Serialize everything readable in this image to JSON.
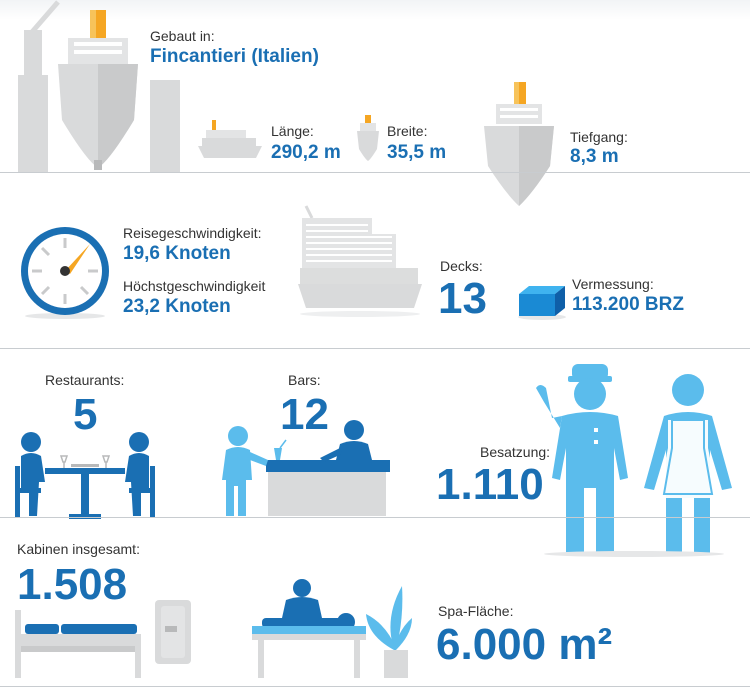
{
  "built": {
    "label": "Gebaut in:",
    "value": "Fincantieri (Italien)"
  },
  "length": {
    "label": "Länge:",
    "value": "290,2 m"
  },
  "width": {
    "label": "Breite:",
    "value": "35,5 m"
  },
  "draft": {
    "label": "Tiefgang:",
    "value": "8,3 m"
  },
  "cruise_speed": {
    "label": "Reisegeschwindigkeit:",
    "value": "19,6 Knoten"
  },
  "max_speed": {
    "label": "Höchstgeschwindigkeit",
    "value": "23,2 Knoten"
  },
  "decks": {
    "label": "Decks:",
    "value": "13"
  },
  "tonnage": {
    "label": "Vermessung:",
    "value": "113.200 BRZ"
  },
  "restaurants": {
    "label": "Restaurants:",
    "value": "5"
  },
  "bars": {
    "label": "Bars:",
    "value": "12"
  },
  "crew": {
    "label": "Besatzung:",
    "value": "1.110"
  },
  "cabins": {
    "label": "Kabinen insgesamt:",
    "value": "1.508"
  },
  "spa": {
    "label": "Spa-Fläche:",
    "value": "6.000 m²"
  },
  "colors": {
    "accent": "#1a6fb3",
    "light_blue": "#5bbcec",
    "grey": "#d9dadb",
    "dark_grey": "#b8b9ba",
    "funnel": "#f5a623"
  }
}
